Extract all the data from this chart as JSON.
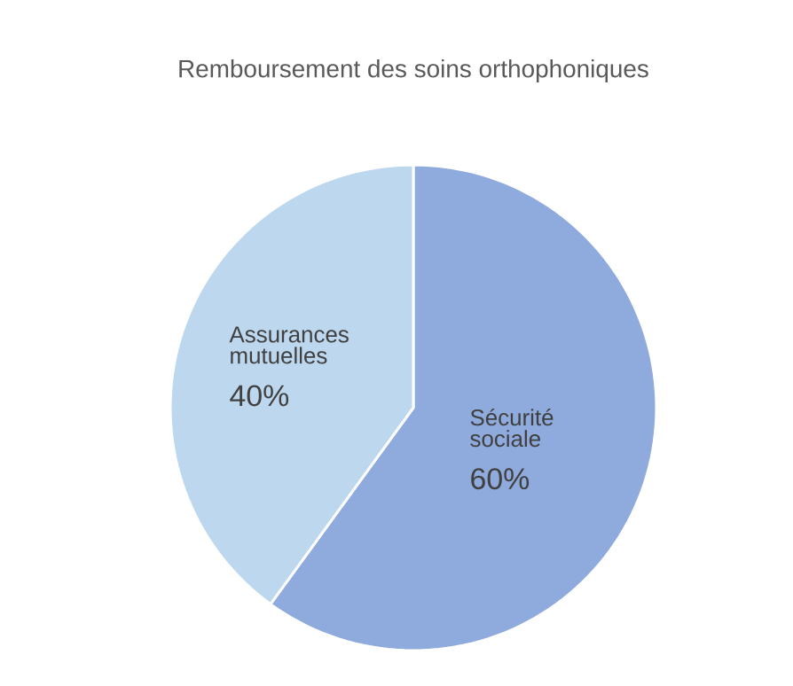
{
  "chart_data": {
    "type": "pie",
    "title": "Remboursement des soins orthophoniques",
    "categories": [
      "Sécurité sociale",
      "Assurances mutuelles"
    ],
    "values": [
      60,
      40
    ],
    "colors": [
      "#8faadc",
      "#bdd7ee"
    ],
    "value_labels": [
      "60%",
      "40%"
    ]
  }
}
